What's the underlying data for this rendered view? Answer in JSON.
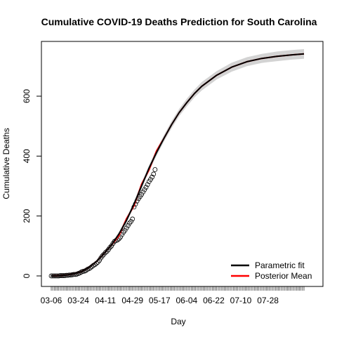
{
  "chart_data": {
    "type": "line",
    "title": "Cumulative COVID-19 Deaths Prediction for South Carolina",
    "xlabel": "Day",
    "ylabel": "Cumulative Deaths",
    "x_tick_labels": [
      "03-06",
      "03-24",
      "04-11",
      "04-29",
      "05-17",
      "06-04",
      "06-22",
      "07-10",
      "07-28"
    ],
    "x_range_days": [
      0,
      168
    ],
    "y_ticks": [
      0,
      200,
      400,
      600
    ],
    "ylim": [
      -20,
      785
    ],
    "grid": false,
    "legend_position": "bottom-right",
    "legend": [
      {
        "name": "Parametric fit",
        "color": "#000000"
      },
      {
        "name": "Posterior Mean",
        "color": "#ff0000"
      }
    ],
    "colors": {
      "band": "#d3d3d3",
      "fit": "#000000",
      "posterior": "#ff0000",
      "points": "#000000"
    },
    "curve": {
      "x": [
        0,
        5,
        10,
        15,
        20,
        25,
        30,
        35,
        40,
        45,
        50,
        55,
        60,
        65,
        70,
        75,
        80,
        85,
        90,
        95,
        100,
        110,
        120,
        130,
        140,
        150,
        160,
        168
      ],
      "y": [
        0,
        1,
        3,
        7,
        14,
        28,
        48,
        74,
        103,
        140,
        185,
        240,
        300,
        360,
        412,
        460,
        505,
        545,
        578,
        608,
        633,
        670,
        697,
        715,
        726,
        733,
        738,
        741
      ],
      "band_halfwidth": [
        1,
        1,
        1,
        2,
        2,
        3,
        4,
        5,
        6,
        7,
        8,
        9,
        10,
        10,
        11,
        11,
        12,
        12,
        13,
        13,
        14,
        14,
        15,
        15,
        15,
        16,
        16,
        16
      ]
    },
    "observed": {
      "x": [
        0,
        1,
        2,
        3,
        4,
        5,
        6,
        7,
        8,
        9,
        10,
        11,
        12,
        13,
        14,
        15,
        16,
        17,
        18,
        19,
        20,
        21,
        22,
        23,
        24,
        25,
        26,
        27,
        28,
        29,
        30,
        31,
        32,
        33,
        34,
        35,
        36,
        37,
        38,
        39,
        40,
        41,
        42,
        43,
        44,
        45,
        46,
        47,
        48,
        49,
        50,
        51,
        52,
        53,
        54,
        55,
        56,
        57,
        58,
        59,
        60,
        61,
        62,
        63,
        64,
        65,
        66,
        67,
        68,
        69
      ],
      "y": [
        0,
        0,
        0,
        0,
        0,
        0,
        1,
        1,
        1,
        1,
        2,
        2,
        3,
        3,
        4,
        5,
        5,
        6,
        8,
        10,
        13,
        15,
        16,
        18,
        22,
        24,
        27,
        31,
        35,
        38,
        42,
        46,
        52,
        60,
        67,
        72,
        78,
        82,
        88,
        95,
        100,
        108,
        115,
        118,
        120,
        124,
        130,
        138,
        146,
        152,
        160,
        168,
        176,
        182,
        190,
        230,
        240,
        250,
        258,
        265,
        272,
        280,
        288,
        296,
        305,
        315,
        322,
        330,
        340,
        355
      ]
    }
  }
}
